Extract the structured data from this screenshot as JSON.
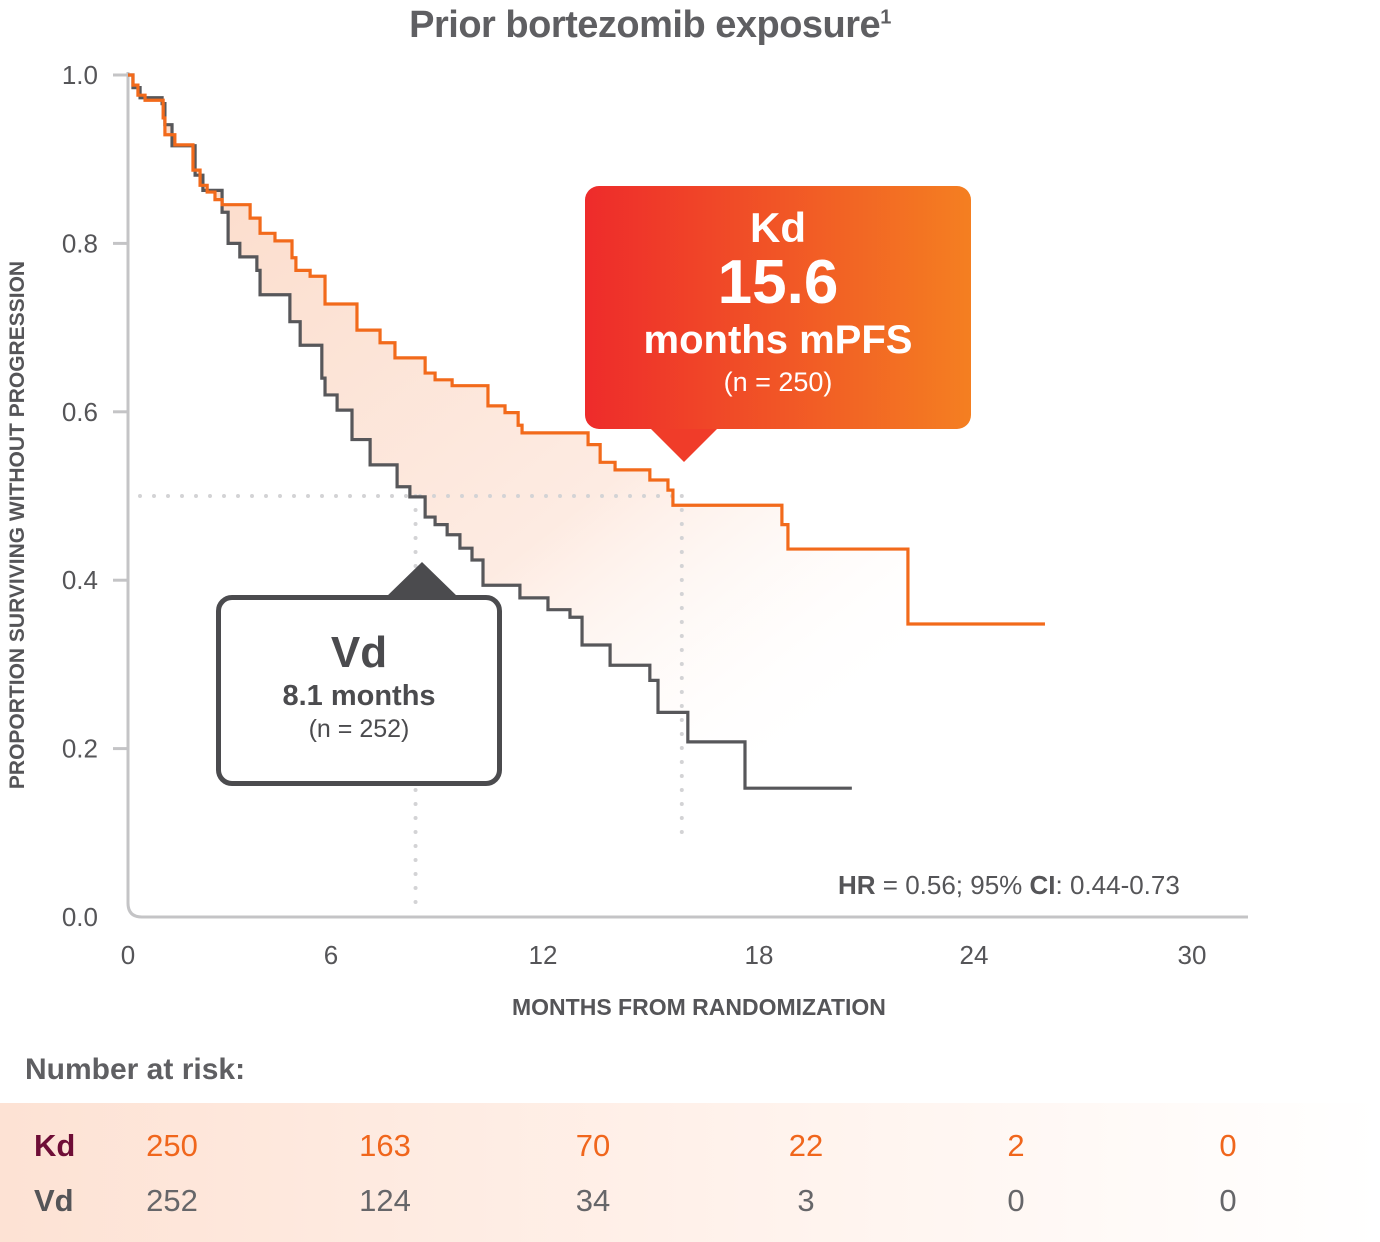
{
  "chart_data": {
    "type": "line",
    "title": "Prior bortezomib exposure",
    "title_superscript": "1",
    "xlabel": "MONTHS FROM RANDOMIZATION",
    "ylabel": "PROPORTION SURVIVING WITHOUT PROGRESSION",
    "xlim": [
      0,
      30
    ],
    "ylim": [
      0,
      1
    ],
    "xticks": [
      "0",
      "6",
      "12",
      "18",
      "24",
      "30"
    ],
    "yticks": [
      "0.0",
      "0.2",
      "0.4",
      "0.6",
      "0.8",
      "1.0"
    ],
    "grid": false,
    "step": true,
    "series": [
      {
        "name": "Kd",
        "color": "#f26a1b",
        "points": [
          [
            0,
            1.0
          ],
          [
            0.14,
            0.988
          ],
          [
            0.28,
            0.976
          ],
          [
            0.48,
            0.97
          ],
          [
            0.99,
            0.949
          ],
          [
            1.04,
            0.929
          ],
          [
            1.32,
            0.917
          ],
          [
            1.83,
            0.887
          ],
          [
            2.03,
            0.869
          ],
          [
            2.23,
            0.861
          ],
          [
            2.45,
            0.852
          ],
          [
            2.65,
            0.846
          ],
          [
            3.44,
            0.83
          ],
          [
            3.72,
            0.812
          ],
          [
            4.14,
            0.803
          ],
          [
            4.62,
            0.783
          ],
          [
            4.73,
            0.768
          ],
          [
            5.13,
            0.761
          ],
          [
            5.55,
            0.728
          ],
          [
            6.45,
            0.697
          ],
          [
            7.1,
            0.682
          ],
          [
            7.52,
            0.664
          ],
          [
            8.37,
            0.646
          ],
          [
            8.65,
            0.638
          ],
          [
            9.13,
            0.631
          ],
          [
            10.14,
            0.607
          ],
          [
            10.62,
            0.599
          ],
          [
            10.99,
            0.584
          ],
          [
            11.1,
            0.575
          ],
          [
            12.96,
            0.561
          ],
          [
            13.3,
            0.54
          ],
          [
            13.72,
            0.531
          ],
          [
            14.7,
            0.519
          ],
          [
            15.21,
            0.507
          ],
          [
            15.35,
            0.489
          ],
          [
            18.42,
            0.466
          ],
          [
            18.59,
            0.437
          ],
          [
            21.97,
            0.348
          ],
          [
            25.83,
            0.348
          ]
        ]
      },
      {
        "name": "Vd",
        "color": "#57575a",
        "points": [
          [
            0,
            1.0
          ],
          [
            0.14,
            0.985
          ],
          [
            0.34,
            0.973
          ],
          [
            0.96,
            0.966
          ],
          [
            1.04,
            0.941
          ],
          [
            1.24,
            0.916
          ],
          [
            1.89,
            0.881
          ],
          [
            2.11,
            0.863
          ],
          [
            2.65,
            0.837
          ],
          [
            2.82,
            0.8
          ],
          [
            3.15,
            0.784
          ],
          [
            3.63,
            0.768
          ],
          [
            3.72,
            0.739
          ],
          [
            4.56,
            0.707
          ],
          [
            4.85,
            0.679
          ],
          [
            5.46,
            0.64
          ],
          [
            5.55,
            0.62
          ],
          [
            5.89,
            0.602
          ],
          [
            6.31,
            0.567
          ],
          [
            6.82,
            0.537
          ],
          [
            7.58,
            0.511
          ],
          [
            7.94,
            0.499
          ],
          [
            8.37,
            0.475
          ],
          [
            8.65,
            0.466
          ],
          [
            8.99,
            0.454
          ],
          [
            9.35,
            0.438
          ],
          [
            9.69,
            0.424
          ],
          [
            10.0,
            0.394
          ],
          [
            11.04,
            0.379
          ],
          [
            11.83,
            0.365
          ],
          [
            12.45,
            0.356
          ],
          [
            12.79,
            0.323
          ],
          [
            13.58,
            0.299
          ],
          [
            14.7,
            0.281
          ],
          [
            14.93,
            0.243
          ],
          [
            15.77,
            0.208
          ],
          [
            17.38,
            0.153
          ],
          [
            20.39,
            0.153
          ]
        ]
      }
    ],
    "reference_lines": {
      "median_y": 0.5,
      "kd_median_x": 15.6,
      "vd_median_x": 8.1
    },
    "annotations": {
      "kd": {
        "label": "Kd",
        "value": "15.6",
        "unit": "months mPFS",
        "n": "(n = 250)",
        "color_start": "#ee2b2b",
        "color_end": "#f47f21"
      },
      "vd": {
        "label": "Vd",
        "value": "8.1 months",
        "n": "(n = 252)"
      },
      "hr": {
        "hr_label": "HR",
        "hr_text": " = 0.56; 95% ",
        "ci_label": "CI",
        "ci_text": ": 0.44-0.73"
      }
    }
  },
  "risk_table": {
    "title": "Number at risk:",
    "rows": [
      {
        "label": "Kd",
        "values": [
          "250",
          "163",
          "70",
          "22",
          "2",
          "0"
        ]
      },
      {
        "label": "Vd",
        "values": [
          "252",
          "124",
          "34",
          "3",
          "0",
          "0"
        ]
      }
    ]
  }
}
